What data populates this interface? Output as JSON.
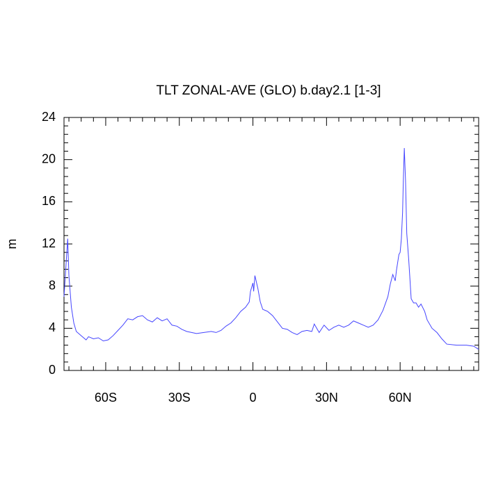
{
  "chart_data": {
    "type": "line",
    "title": "TLT ZONAL-AVE (GLO) b.day2.1 [1-3]",
    "y_label": "m",
    "series": [
      {
        "color": "#4444ff",
        "x": [
          -77,
          -75.5,
          -75,
          -74,
          -73,
          -72,
          -70,
          -68,
          -67,
          -65,
          -63,
          -61,
          -59,
          -57,
          -55,
          -53,
          -51,
          -49,
          -47,
          -45,
          -43,
          -41,
          -39,
          -37,
          -35,
          -33,
          -31,
          -29,
          -27,
          -25,
          -23,
          -20,
          -17,
          -15,
          -13,
          -11,
          -9,
          -7,
          -5,
          -3,
          -1.5,
          -1,
          0,
          0.3,
          0.8,
          2,
          3,
          4,
          6,
          8,
          10,
          12,
          14,
          16,
          18,
          20,
          22,
          24,
          25,
          27,
          29,
          31,
          33,
          35,
          37,
          39,
          41,
          43,
          45,
          47,
          49,
          51,
          53,
          55,
          56,
          57,
          58,
          58.5,
          59.5,
          60,
          60.5,
          61,
          61.3,
          61.7,
          62.2,
          62.7,
          63.5,
          64.5,
          65.5,
          66.5,
          67.5,
          68.5,
          70,
          71,
          73,
          75,
          77,
          79,
          83,
          87,
          90,
          92
        ],
        "values": [
          7,
          12.5,
          9,
          6,
          4.5,
          3.7,
          3.3,
          2.9,
          3.2,
          3.0,
          3.1,
          2.8,
          2.9,
          3.3,
          3.8,
          4.3,
          4.9,
          4.8,
          5.1,
          5.2,
          4.8,
          4.6,
          5.0,
          4.7,
          4.9,
          4.3,
          4.2,
          3.9,
          3.7,
          3.6,
          3.5,
          3.6,
          3.7,
          3.6,
          3.8,
          4.2,
          4.5,
          5.0,
          5.6,
          6.0,
          6.5,
          7.5,
          8.3,
          7.5,
          9.0,
          7.8,
          6.5,
          5.8,
          5.6,
          5.2,
          4.6,
          4.0,
          3.9,
          3.6,
          3.4,
          3.7,
          3.8,
          3.7,
          4.4,
          3.6,
          4.3,
          3.8,
          4.1,
          4.3,
          4.1,
          4.3,
          4.7,
          4.5,
          4.3,
          4.1,
          4.3,
          4.8,
          5.7,
          7.0,
          8.2,
          9.1,
          8.5,
          9.5,
          11,
          11.2,
          12.5,
          15,
          18,
          21.1,
          18,
          13,
          10.5,
          6.8,
          6.4,
          6.4,
          6.0,
          6.3,
          5.6,
          4.8,
          4.0,
          3.6,
          3.0,
          2.5,
          2.4,
          2.4,
          2.3,
          2.0
        ]
      }
    ],
    "xlim": [
      -77,
      92
    ],
    "xticks": [
      {
        "value": -60,
        "label": "60S"
      },
      {
        "value": -30,
        "label": "30S"
      },
      0,
      {
        "value": 30,
        "label": "30N"
      },
      {
        "value": 60,
        "label": "60N"
      }
    ],
    "xminorticks": [
      -75,
      -70,
      -65,
      -55,
      -50,
      -45,
      -40,
      -35,
      -25,
      -20,
      -15,
      -10,
      -5,
      5,
      10,
      15,
      20,
      25,
      35,
      40,
      45,
      50,
      55,
      65,
      70,
      75,
      80,
      85,
      90
    ],
    "ylim": [
      0,
      24
    ],
    "yticks": [
      0,
      4,
      8,
      12,
      16,
      20,
      24
    ],
    "yminorticks": [
      0.8,
      1.6,
      2.4,
      3.2,
      4.8,
      5.6,
      6.4,
      7.2,
      8.8,
      9.6,
      10.4,
      11.2,
      12.8,
      13.6,
      14.4,
      15.2,
      16.8,
      17.6,
      18.4,
      19.2,
      20.8,
      21.6,
      22.4,
      23.2
    ],
    "grid": false
  }
}
